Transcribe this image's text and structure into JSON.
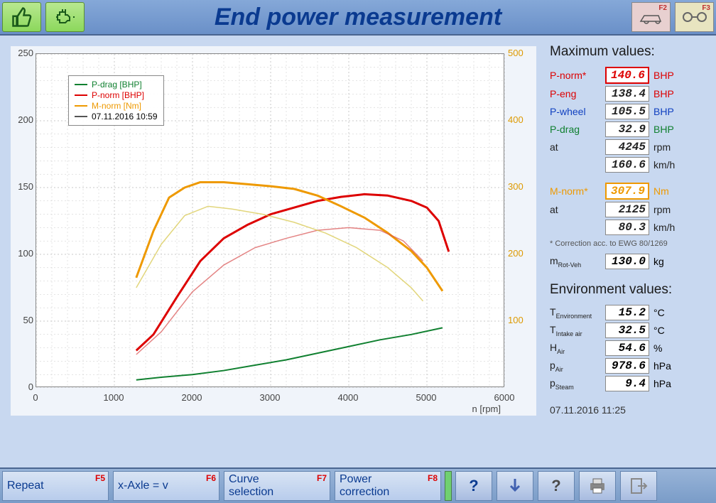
{
  "header": {
    "title": "End power measurement",
    "right_keys": [
      "F2",
      "F3"
    ]
  },
  "chart": {
    "type": "line",
    "x_label": "n [rpm]",
    "xlim": [
      0,
      6000
    ],
    "xtick_step": 1000,
    "ylim": [
      0,
      250
    ],
    "ytick_step": 50,
    "y2lim": [
      0,
      500
    ],
    "y2tick_step": 100,
    "background_color": "#ffffff",
    "grid_color": "#c8c8c8",
    "grid_dash": "2,3",
    "plot_bg": "#ffffff",
    "legend": {
      "items": [
        {
          "label": "P-drag [BHP]",
          "color": "#108030"
        },
        {
          "label": "P-norm [BHP]",
          "color": "#dd0000"
        },
        {
          "label": "M-norm [Nm]",
          "color": "#ee9900"
        }
      ],
      "date": "07.11.2016 10:59"
    },
    "series": [
      {
        "name": "P-drag",
        "color": "#108030",
        "width": 2,
        "points": [
          [
            1280,
            6
          ],
          [
            1600,
            8
          ],
          [
            2000,
            10
          ],
          [
            2400,
            13
          ],
          [
            2800,
            17
          ],
          [
            3200,
            21
          ],
          [
            3600,
            26
          ],
          [
            4000,
            31
          ],
          [
            4400,
            36
          ],
          [
            4800,
            40
          ],
          [
            5200,
            45
          ]
        ]
      },
      {
        "name": "P-norm",
        "color": "#dd0000",
        "width": 3,
        "points": [
          [
            1280,
            28
          ],
          [
            1500,
            40
          ],
          [
            1800,
            68
          ],
          [
            2100,
            95
          ],
          [
            2400,
            112
          ],
          [
            2700,
            122
          ],
          [
            3000,
            130
          ],
          [
            3300,
            135
          ],
          [
            3600,
            140
          ],
          [
            3900,
            143
          ],
          [
            4200,
            145
          ],
          [
            4500,
            144
          ],
          [
            4800,
            140
          ],
          [
            5000,
            135
          ],
          [
            5150,
            125
          ],
          [
            5280,
            102
          ]
        ]
      },
      {
        "name": "M-norm",
        "color": "#ee9900",
        "width": 3,
        "axis": "y2",
        "points": [
          [
            1280,
            165
          ],
          [
            1500,
            235
          ],
          [
            1700,
            285
          ],
          [
            1900,
            300
          ],
          [
            2100,
            308
          ],
          [
            2400,
            308
          ],
          [
            2700,
            305
          ],
          [
            3000,
            302
          ],
          [
            3300,
            298
          ],
          [
            3600,
            288
          ],
          [
            3900,
            272
          ],
          [
            4200,
            255
          ],
          [
            4500,
            232
          ],
          [
            4800,
            205
          ],
          [
            5000,
            180
          ],
          [
            5200,
            145
          ]
        ]
      },
      {
        "name": "P-norm-prev",
        "color": "#d85050",
        "width": 1.5,
        "opacity": 0.7,
        "points": [
          [
            1280,
            25
          ],
          [
            1600,
            42
          ],
          [
            2000,
            72
          ],
          [
            2400,
            92
          ],
          [
            2800,
            105
          ],
          [
            3200,
            112
          ],
          [
            3600,
            118
          ],
          [
            4000,
            120
          ],
          [
            4400,
            118
          ],
          [
            4700,
            110
          ],
          [
            4950,
            95
          ]
        ]
      },
      {
        "name": "M-norm-prev",
        "color": "#d8c850",
        "width": 1.5,
        "axis": "y2",
        "opacity": 0.75,
        "points": [
          [
            1280,
            150
          ],
          [
            1600,
            215
          ],
          [
            1900,
            258
          ],
          [
            2200,
            272
          ],
          [
            2500,
            268
          ],
          [
            2900,
            260
          ],
          [
            3300,
            248
          ],
          [
            3700,
            232
          ],
          [
            4100,
            210
          ],
          [
            4500,
            180
          ],
          [
            4800,
            150
          ],
          [
            4950,
            130
          ]
        ]
      }
    ]
  },
  "maximum": {
    "title": "Maximum values:",
    "rows": [
      {
        "label": "P-norm*",
        "value": "140.6",
        "unit": "BHP",
        "color": "#dd0000",
        "highlight": "red"
      },
      {
        "label": "P-eng",
        "value": "138.4",
        "unit": "BHP",
        "color": "#dd0000"
      },
      {
        "label": "P-wheel",
        "value": "105.5",
        "unit": "BHP",
        "color": "#1040c0"
      },
      {
        "label": "P-drag",
        "value": "32.9",
        "unit": "BHP",
        "color": "#108030"
      },
      {
        "label": "at",
        "value": "4245",
        "unit": "rpm",
        "color": "#222"
      },
      {
        "label": "",
        "value": "160.6",
        "unit": "km/h",
        "color": "#222"
      }
    ],
    "rows2": [
      {
        "label": "M-norm*",
        "value": "307.9",
        "unit": "Nm",
        "color": "#ee9900",
        "highlight": "org"
      },
      {
        "label": "at",
        "value": "2125",
        "unit": "rpm",
        "color": "#222"
      },
      {
        "label": "",
        "value": "80.3",
        "unit": "km/h",
        "color": "#222"
      }
    ],
    "correction_note": "* Correction acc. to EWG 80/1269",
    "mrot": {
      "label": "m",
      "sub": "Rot-Veh",
      "value": "130.0",
      "unit": "kg"
    }
  },
  "environment": {
    "title": "Environment values:",
    "rows": [
      {
        "label": "T",
        "sub": "Environment",
        "value": "15.2",
        "unit": "°C"
      },
      {
        "label": "T",
        "sub": "Intake air",
        "value": "32.5",
        "unit": "°C"
      },
      {
        "label": "H",
        "sub": "Air",
        "value": "54.6",
        "unit": "%"
      },
      {
        "label": "p",
        "sub": "Air",
        "value": "978.6",
        "unit": "hPa"
      },
      {
        "label": "p",
        "sub": "Steam",
        "value": "9.4",
        "unit": "hPa"
      }
    ]
  },
  "timestamp": "07.11.2016  11:25",
  "bottom": {
    "buttons": [
      {
        "label": "Repeat",
        "key": "F5"
      },
      {
        "label": "x-Axle = v",
        "key": "F6"
      },
      {
        "label": "Curve\nselection",
        "key": "F7"
      },
      {
        "label": "Power\ncorrection",
        "key": "F8"
      }
    ],
    "icons": [
      "help-icon",
      "down-arrow-icon",
      "question-icon",
      "print-icon",
      "exit-icon"
    ]
  }
}
